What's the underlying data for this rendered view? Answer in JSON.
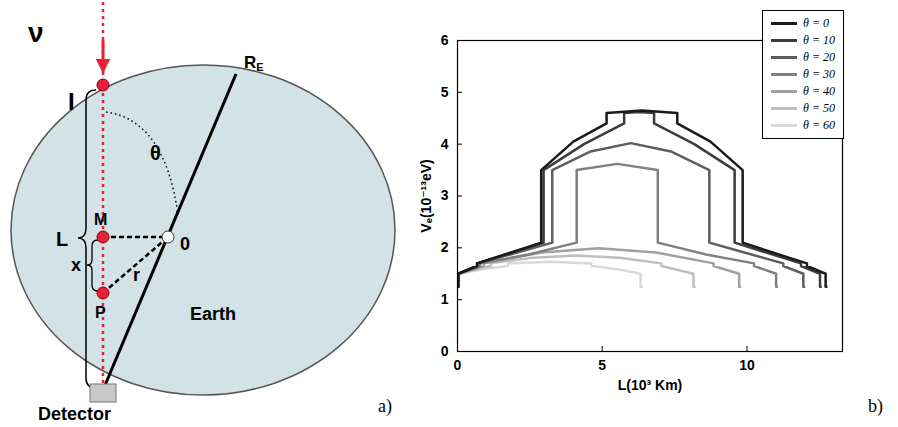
{
  "diagram": {
    "neutrino_label": "ν",
    "entry_label": "I",
    "length_label": "L",
    "M_label": "M",
    "P_label": "P",
    "x_label": "x",
    "r_label": "r",
    "theta_label": "θ",
    "center_label": "0",
    "radius_label": "R",
    "radius_subscript": "E",
    "earth_label": "Earth",
    "detector_label": "Detector",
    "panel_label": "a)"
  },
  "chart_data": {
    "type": "line",
    "panel_label": "b)",
    "x_label": "L(10³ Km)",
    "y_label": "Vₑ(10⁻¹³eV)",
    "xlim": [
      0,
      13.3
    ],
    "ylim": [
      0,
      6
    ],
    "xticks": [
      0,
      5,
      10
    ],
    "yticks": [
      0,
      1,
      2,
      3,
      4,
      5,
      6
    ],
    "legend": "top-right",
    "series": [
      {
        "name": "θ = 0",
        "color": "#1a1a1a",
        "x": [
          0,
          0.025,
          0.025,
          0.67,
          0.67,
          1.8,
          2.891,
          2.891,
          4.0,
          5.15,
          5.15,
          6.371,
          7.592,
          7.592,
          8.74,
          9.851,
          9.851,
          10.94,
          12.072,
          12.072,
          12.717,
          12.717,
          12.742
        ],
        "values": [
          1.25,
          1.25,
          1.5,
          1.65,
          1.7,
          1.9,
          2.1,
          3.5,
          4.05,
          4.4,
          4.6,
          4.65,
          4.6,
          4.4,
          4.05,
          3.5,
          2.1,
          1.9,
          1.7,
          1.65,
          1.5,
          1.25,
          1.25
        ]
      },
      {
        "name": "θ = 10",
        "color": "#3c3c3c",
        "x": [
          0,
          0.025,
          0.025,
          0.681,
          0.681,
          1.83,
          2.974,
          2.974,
          4.37,
          5.757,
          5.757,
          6.274,
          6.791,
          6.791,
          8.18,
          9.574,
          9.574,
          10.72,
          11.867,
          11.867,
          12.523,
          12.523,
          12.548
        ],
        "values": [
          1.25,
          1.25,
          1.5,
          1.65,
          1.7,
          1.9,
          2.1,
          3.5,
          4.0,
          4.4,
          4.6,
          4.62,
          4.6,
          4.4,
          4.0,
          3.5,
          2.1,
          1.9,
          1.7,
          1.65,
          1.5,
          1.25,
          1.25
        ]
      },
      {
        "name": "θ = 20",
        "color": "#5e5e5e",
        "x": [
          0,
          0.027,
          0.027,
          0.719,
          0.719,
          2.0,
          3.274,
          3.274,
          4.6,
          5.987,
          7.37,
          8.7,
          8.7,
          9.97,
          11.255,
          11.255,
          11.947,
          11.947,
          11.974
        ],
        "values": [
          1.25,
          1.25,
          1.5,
          1.65,
          1.7,
          1.9,
          2.1,
          3.5,
          3.86,
          4.02,
          3.86,
          3.5,
          2.1,
          1.9,
          1.7,
          1.65,
          1.5,
          1.25,
          1.25
        ]
      },
      {
        "name": "θ = 30",
        "color": "#808080",
        "x": [
          0,
          0.029,
          0.029,
          0.79,
          0.79,
          2.45,
          4.117,
          4.117,
          5.518,
          6.919,
          6.919,
          8.59,
          10.246,
          10.246,
          11.007,
          11.007,
          11.035
        ],
        "values": [
          1.25,
          1.25,
          1.5,
          1.65,
          1.7,
          1.87,
          2.1,
          3.5,
          3.62,
          3.5,
          2.1,
          1.87,
          1.7,
          1.65,
          1.5,
          1.25,
          1.25
        ]
      },
      {
        "name": "θ = 40",
        "color": "#a0a0a0",
        "x": [
          0,
          0.033,
          0.033,
          0.915,
          0.915,
          2.9,
          4.881,
          6.86,
          8.847,
          8.847,
          9.729,
          9.729,
          9.761
        ],
        "values": [
          1.25,
          1.25,
          1.5,
          1.65,
          1.7,
          1.91,
          1.99,
          1.91,
          1.7,
          1.65,
          1.5,
          1.25,
          1.25
        ]
      },
      {
        "name": "θ = 50",
        "color": "#bfbfbf",
        "x": [
          0,
          0.038,
          0.038,
          1.148,
          1.148,
          2.6,
          4.095,
          5.59,
          7.042,
          7.042,
          8.152,
          8.152,
          8.19
        ],
        "values": [
          1.25,
          1.25,
          1.5,
          1.65,
          1.7,
          1.81,
          1.85,
          1.81,
          1.7,
          1.65,
          1.5,
          1.25,
          1.25
        ]
      },
      {
        "name": "θ = 60",
        "color": "#d9d9d9",
        "x": [
          0,
          0.05,
          0.05,
          0.9,
          1.749,
          1.749,
          3.186,
          4.623,
          4.623,
          5.47,
          6.322,
          6.322,
          6.371
        ],
        "values": [
          1.25,
          1.25,
          1.5,
          1.59,
          1.65,
          1.7,
          1.73,
          1.7,
          1.65,
          1.59,
          1.5,
          1.25,
          1.25
        ]
      }
    ]
  }
}
